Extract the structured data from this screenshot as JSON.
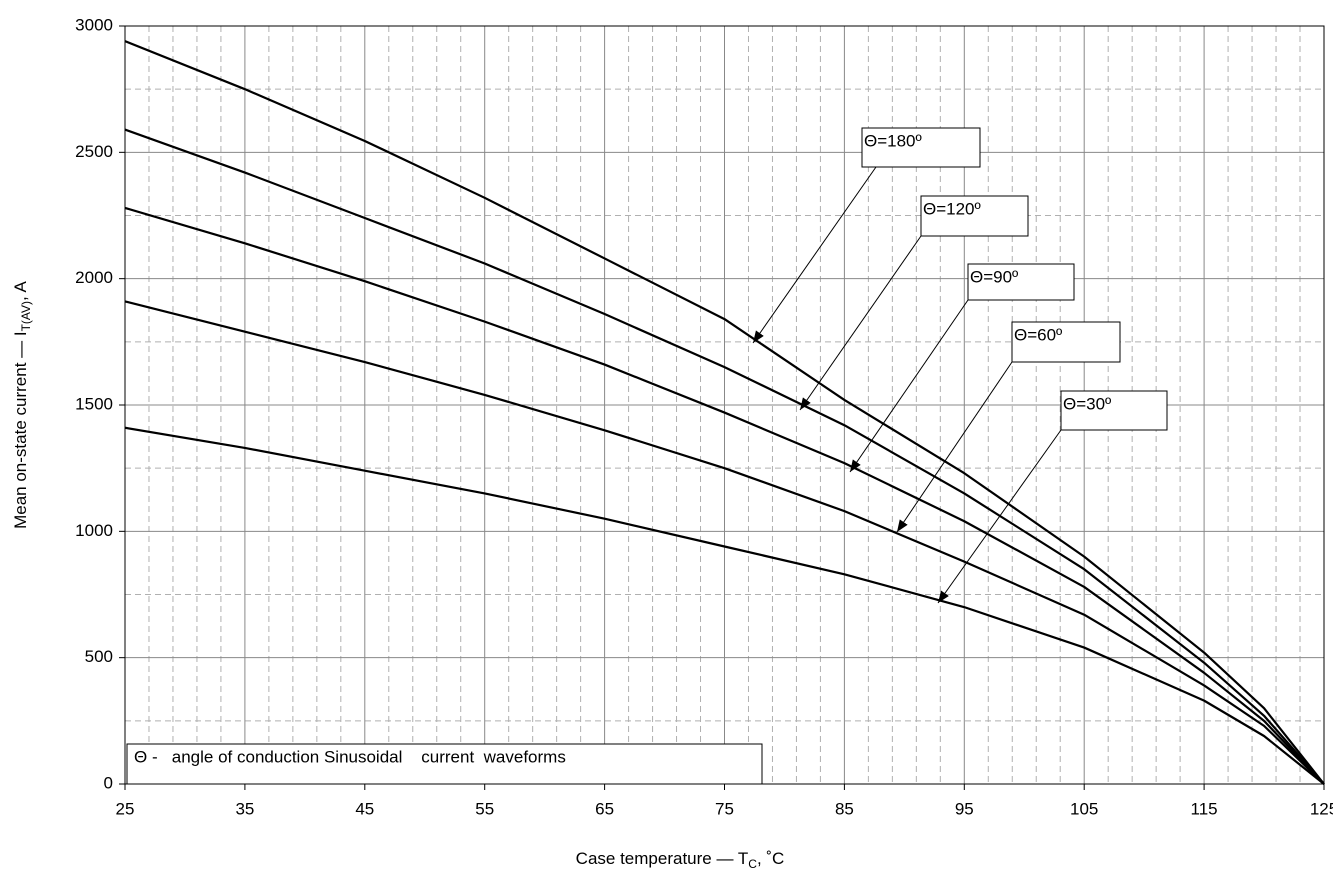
{
  "chart_data": {
    "type": "line",
    "x_label": {
      "text": "Case temperature — T",
      "sub": "C",
      "tail": ", ˚C"
    },
    "y_label": {
      "text": "Mean on-state current — I",
      "sub": "T(AV)",
      "tail": ", A"
    },
    "note": "Θ -   angle of conduction Sinusoidal    current  waveforms",
    "x": [
      25,
      35,
      45,
      55,
      65,
      75,
      85,
      95,
      105,
      115,
      120,
      125
    ],
    "series": [
      {
        "name": "Θ=180º",
        "color": "#000000",
        "values": [
          2940,
          2750,
          2545,
          2320,
          2080,
          1840,
          1520,
          1230,
          900,
          520,
          300,
          0
        ]
      },
      {
        "name": "Θ=120º",
        "color": "#000000",
        "values": [
          2590,
          2420,
          2240,
          2060,
          1860,
          1650,
          1420,
          1150,
          850,
          480,
          270,
          0
        ]
      },
      {
        "name": "Θ=90º",
        "color": "#000000",
        "values": [
          2280,
          2140,
          1990,
          1830,
          1660,
          1470,
          1270,
          1040,
          780,
          440,
          250,
          0
        ]
      },
      {
        "name": "Θ=60º",
        "color": "#000000",
        "values": [
          1910,
          1790,
          1670,
          1540,
          1400,
          1250,
          1080,
          880,
          670,
          390,
          230,
          0
        ]
      },
      {
        "name": "Θ=30º",
        "color": "#000000",
        "values": [
          1410,
          1330,
          1240,
          1150,
          1050,
          940,
          830,
          700,
          540,
          330,
          190,
          0
        ]
      }
    ],
    "xlim": [
      25,
      125
    ],
    "xticks": [
      25,
      35,
      45,
      55,
      65,
      75,
      85,
      95,
      105,
      115,
      125
    ],
    "x_minor_ticks": [
      27,
      29,
      31,
      33,
      37,
      39,
      41,
      43,
      47,
      49,
      51,
      53,
      57,
      59,
      61,
      63,
      67,
      69,
      71,
      73,
      77,
      79,
      81,
      83,
      87,
      89,
      91,
      93,
      97,
      99,
      101,
      103,
      107,
      109,
      111,
      113,
      117,
      119,
      121,
      123
    ],
    "ylim": [
      0,
      3000
    ],
    "yticks": [
      0,
      500,
      1000,
      1500,
      2000,
      2500,
      3000
    ],
    "y_minor_ticks": [
      250,
      750,
      1250,
      1750,
      2250,
      2750
    ],
    "grid": true
  }
}
